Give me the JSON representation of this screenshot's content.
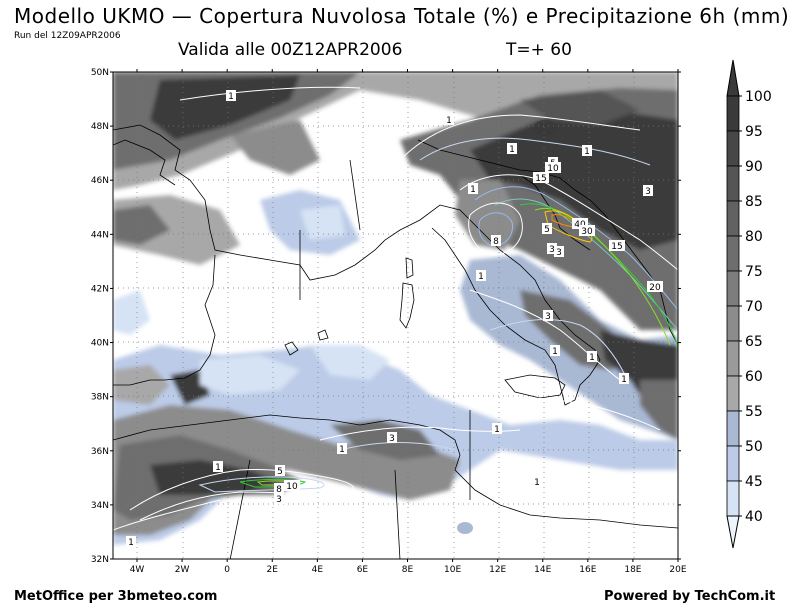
{
  "header": {
    "title": "Modello UKMO — Copertura Nuvolosa Totale (%) e Precipitazione 6h (mm)",
    "run": "Run del 12Z09APR2006",
    "valid": "Valida alle 00Z12APR2006",
    "step": "T=+ 60"
  },
  "footer": {
    "left": "MetOffice per 3bmeteo.com",
    "right": "Powered by TechCom.it"
  },
  "map": {
    "lat_labels": [
      "50N",
      "48N",
      "46N",
      "44N",
      "42N",
      "40N",
      "38N",
      "36N",
      "34N",
      "32N"
    ],
    "lon_labels": [
      "4W",
      "2W",
      "0",
      "2E",
      "4E",
      "6E",
      "8E",
      "10E",
      "12E",
      "14E",
      "16E",
      "18E",
      "20E"
    ],
    "colors": {
      "cloud_100": "#3a3a3a",
      "cloud_90": "#555555",
      "cloud_80": "#6e6e6e",
      "cloud_70": "#8c8c8c",
      "cloud_60": "#a8a8a8",
      "cloud_55": "#a9b8d3",
      "cloud_50": "#bccbe7",
      "cloud_45": "#d6e3f5",
      "cloud_40": "#eef4fc",
      "land_line": "#000000",
      "rain_1": "#ffffff",
      "rain_3": "#c8d8f0",
      "rain_5": "#9ab8e8",
      "rain_10": "#7cc8c0",
      "rain_15": "#33cc33",
      "rain_20": "#88dd22",
      "rain_40": "#ffcc00"
    },
    "contour_labels": [
      {
        "label": "1"
      },
      {
        "label": "1"
      },
      {
        "label": "1"
      },
      {
        "label": "1"
      },
      {
        "label": "3"
      },
      {
        "label": "5"
      },
      {
        "label": "10"
      },
      {
        "label": "15"
      },
      {
        "label": "20"
      },
      {
        "label": "40"
      },
      {
        "label": "30"
      },
      {
        "label": "5"
      },
      {
        "label": "3"
      },
      {
        "label": "1"
      },
      {
        "label": "15"
      },
      {
        "label": "3"
      },
      {
        "label": "20"
      },
      {
        "label": "8"
      },
      {
        "label": "1"
      },
      {
        "label": "1"
      },
      {
        "label": "3"
      },
      {
        "label": "1"
      },
      {
        "label": "1"
      },
      {
        "label": "1"
      },
      {
        "label": "3"
      },
      {
        "label": "1"
      },
      {
        "label": "1"
      },
      {
        "label": "1"
      },
      {
        "label": "5"
      },
      {
        "label": "10"
      },
      {
        "label": "8"
      },
      {
        "label": "3"
      },
      {
        "label": "1"
      },
      {
        "label": "1"
      }
    ]
  },
  "legend": {
    "labels": [
      "100",
      "95",
      "90",
      "85",
      "80",
      "75",
      "70",
      "65",
      "60",
      "55",
      "50",
      "45",
      "40"
    ],
    "colors": [
      "#3a3a3a",
      "#474747",
      "#555555",
      "#626262",
      "#6e6e6e",
      "#7d7d7d",
      "#8c8c8c",
      "#9a9a9a",
      "#a8a8a8",
      "#a9b8d3",
      "#bccbe7",
      "#d6e3f5",
      "#eef4fc"
    ]
  }
}
